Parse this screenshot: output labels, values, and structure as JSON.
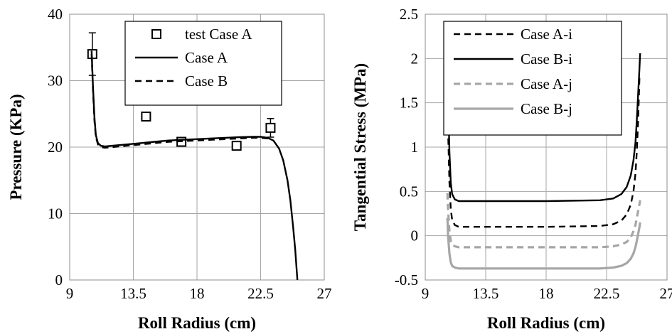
{
  "chart_data": [
    {
      "type": "line",
      "xlabel": "Roll Radius (cm)",
      "ylabel": "Pressure (KPa)",
      "xlim": [
        9,
        27
      ],
      "ylim": [
        0,
        40
      ],
      "xticks": [
        "9",
        "13.5",
        "18",
        "22.5",
        "27"
      ],
      "yticks": [
        "0",
        "10",
        "20",
        "30",
        "40"
      ],
      "grid": true,
      "legend_position": "top-right",
      "series": [
        {
          "name": "test Case A",
          "style": "markers",
          "color": "#000000",
          "points": [
            {
              "x": 10.6,
              "y": 34.0,
              "err": 3.2
            },
            {
              "x": 14.4,
              "y": 24.6,
              "err": 0.5
            },
            {
              "x": 16.9,
              "y": 20.8,
              "err": 0.3
            },
            {
              "x": 20.8,
              "y": 20.2,
              "err": 0.0
            },
            {
              "x": 23.2,
              "y": 22.9,
              "err": 1.4
            }
          ]
        },
        {
          "name": "Case A",
          "style": "solid",
          "color": "#000000",
          "x": [
            10.55,
            10.65,
            10.75,
            10.85,
            11.0,
            11.2,
            11.5,
            12.0,
            13.0,
            14.0,
            15.0,
            16.0,
            17.0,
            18.0,
            19.0,
            20.0,
            21.0,
            22.0,
            22.5,
            23.0,
            23.4,
            23.8,
            24.1,
            24.4,
            24.6,
            24.8,
            24.95,
            25.05,
            25.1
          ],
          "y": [
            34.5,
            29.0,
            24.5,
            21.8,
            20.6,
            20.2,
            20.1,
            20.2,
            20.4,
            20.6,
            20.8,
            21.0,
            21.1,
            21.2,
            21.3,
            21.4,
            21.5,
            21.55,
            21.55,
            21.4,
            21.0,
            19.8,
            18.0,
            15.0,
            12.0,
            8.0,
            4.5,
            1.5,
            0.0
          ]
        },
        {
          "name": "Case B",
          "style": "dashed",
          "color": "#000000",
          "x": [
            10.55,
            10.65,
            10.75,
            10.85,
            11.0,
            11.2,
            11.5,
            12.0,
            13.0,
            14.0,
            15.0,
            16.0,
            17.0,
            18.0,
            19.0,
            20.0,
            21.0,
            22.0,
            22.5,
            23.0,
            23.3
          ],
          "y": [
            34.0,
            28.5,
            24.0,
            21.5,
            20.4,
            20.0,
            19.9,
            20.0,
            20.2,
            20.4,
            20.6,
            20.8,
            20.9,
            21.0,
            21.1,
            21.2,
            21.3,
            21.4,
            21.4,
            21.3,
            21.1
          ]
        }
      ]
    },
    {
      "type": "line",
      "xlabel": "Roll Radius (cm)",
      "ylabel": "Tangential Stress (MPa)",
      "xlim": [
        9,
        27
      ],
      "ylim": [
        -0.5,
        2.5
      ],
      "xticks": [
        "9",
        "13.5",
        "18",
        "22.5",
        "27"
      ],
      "yticks": [
        "-0.5",
        "0",
        "0.5",
        "1",
        "1.5",
        "2",
        "2.5"
      ],
      "grid": true,
      "legend_position": "top-left",
      "series": [
        {
          "name": "Case A-i",
          "style": "dashed",
          "color": "#000000",
          "x": [
            10.65,
            10.7,
            10.8,
            10.9,
            11.0,
            11.2,
            11.5,
            12.0,
            14.0,
            18.0,
            22.0,
            23.0,
            23.6,
            24.0,
            24.3,
            24.5,
            24.65,
            24.75,
            24.85,
            24.95
          ],
          "y": [
            1.7,
            1.2,
            0.6,
            0.3,
            0.18,
            0.12,
            0.1,
            0.1,
            0.1,
            0.1,
            0.11,
            0.13,
            0.17,
            0.24,
            0.35,
            0.5,
            0.7,
            0.95,
            1.3,
            1.8
          ]
        },
        {
          "name": "Case B-i",
          "style": "solid",
          "color": "#000000",
          "x": [
            10.65,
            10.7,
            10.8,
            10.9,
            11.0,
            11.2,
            11.5,
            12.0,
            14.0,
            18.0,
            22.0,
            23.0,
            23.6,
            24.0,
            24.3,
            24.5,
            24.65,
            24.75,
            24.85,
            24.95,
            25.0
          ],
          "y": [
            2.08,
            1.6,
            0.95,
            0.6,
            0.47,
            0.41,
            0.39,
            0.39,
            0.39,
            0.39,
            0.4,
            0.42,
            0.47,
            0.55,
            0.68,
            0.85,
            1.05,
            1.3,
            1.6,
            1.9,
            2.06
          ]
        },
        {
          "name": "Case A-j",
          "style": "dashed",
          "color": "#a6a6a6",
          "x": [
            10.65,
            10.7,
            10.8,
            10.9,
            11.0,
            11.2,
            11.5,
            12.0,
            14.0,
            18.0,
            22.0,
            23.0,
            23.6,
            24.0,
            24.3,
            24.5,
            24.65,
            24.75,
            24.85,
            24.95,
            25.0
          ],
          "y": [
            0.48,
            0.3,
            0.05,
            -0.06,
            -0.1,
            -0.12,
            -0.13,
            -0.13,
            -0.13,
            -0.13,
            -0.13,
            -0.12,
            -0.1,
            -0.07,
            -0.02,
            0.05,
            0.12,
            0.2,
            0.28,
            0.36,
            0.4
          ]
        },
        {
          "name": "Case B-j",
          "style": "solid",
          "color": "#a6a6a6",
          "x": [
            10.65,
            10.7,
            10.8,
            10.9,
            11.0,
            11.2,
            11.5,
            12.0,
            14.0,
            18.0,
            22.0,
            23.0,
            23.6,
            24.0,
            24.3,
            24.5,
            24.65,
            24.75,
            24.85,
            24.95,
            25.0
          ],
          "y": [
            0.2,
            0.0,
            -0.2,
            -0.3,
            -0.34,
            -0.36,
            -0.37,
            -0.37,
            -0.37,
            -0.37,
            -0.37,
            -0.36,
            -0.34,
            -0.31,
            -0.26,
            -0.2,
            -0.13,
            -0.06,
            0.02,
            0.1,
            0.15
          ]
        }
      ]
    }
  ]
}
